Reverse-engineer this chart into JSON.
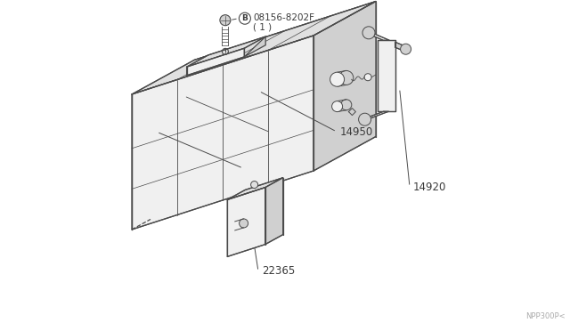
{
  "bg_color": "#ffffff",
  "line_color": "#4a4a4a",
  "fill_front": "#f0f0f0",
  "fill_top": "#e0e0e0",
  "fill_right": "#d0d0d0",
  "fill_side_dark": "#c8c8c8",
  "text_color": "#3a3a3a",
  "fig_width": 6.4,
  "fig_height": 3.72,
  "watermark": "NPP300P<",
  "label_14950": "14950",
  "label_14920": "14920",
  "label_22365": "22365",
  "label_bolt": "B",
  "label_bolt_num": "08156-8202F",
  "label_bolt_qty": "( 1 )",
  "dpi": 100
}
